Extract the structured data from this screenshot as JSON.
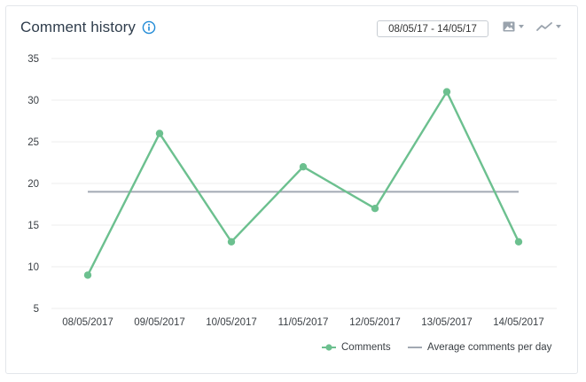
{
  "header": {
    "title": "Comment history",
    "date_range": "08/05/17 - 14/05/17"
  },
  "icons": {
    "info": "info-icon",
    "image_export": "image-icon",
    "chart_type": "line-chart-icon"
  },
  "colors": {
    "comments": "#6cc08f",
    "average": "#a2a9b3",
    "info": "#1f8ad6",
    "grid": "#ececec"
  },
  "chart_data": {
    "type": "line",
    "categories": [
      "08/05/2017",
      "09/05/2017",
      "10/05/2017",
      "11/05/2017",
      "12/05/2017",
      "13/05/2017",
      "14/05/2017"
    ],
    "series": [
      {
        "name": "Comments",
        "values": [
          9,
          26,
          13,
          22,
          17,
          31,
          13
        ]
      },
      {
        "name": "Average comments per day",
        "values": [
          19,
          19,
          19,
          19,
          19,
          19,
          19
        ]
      }
    ],
    "yticks": [
      5,
      10,
      15,
      20,
      25,
      30,
      35
    ],
    "ylim": [
      5,
      35
    ],
    "grid": true,
    "legend_position": "bottom-right"
  }
}
